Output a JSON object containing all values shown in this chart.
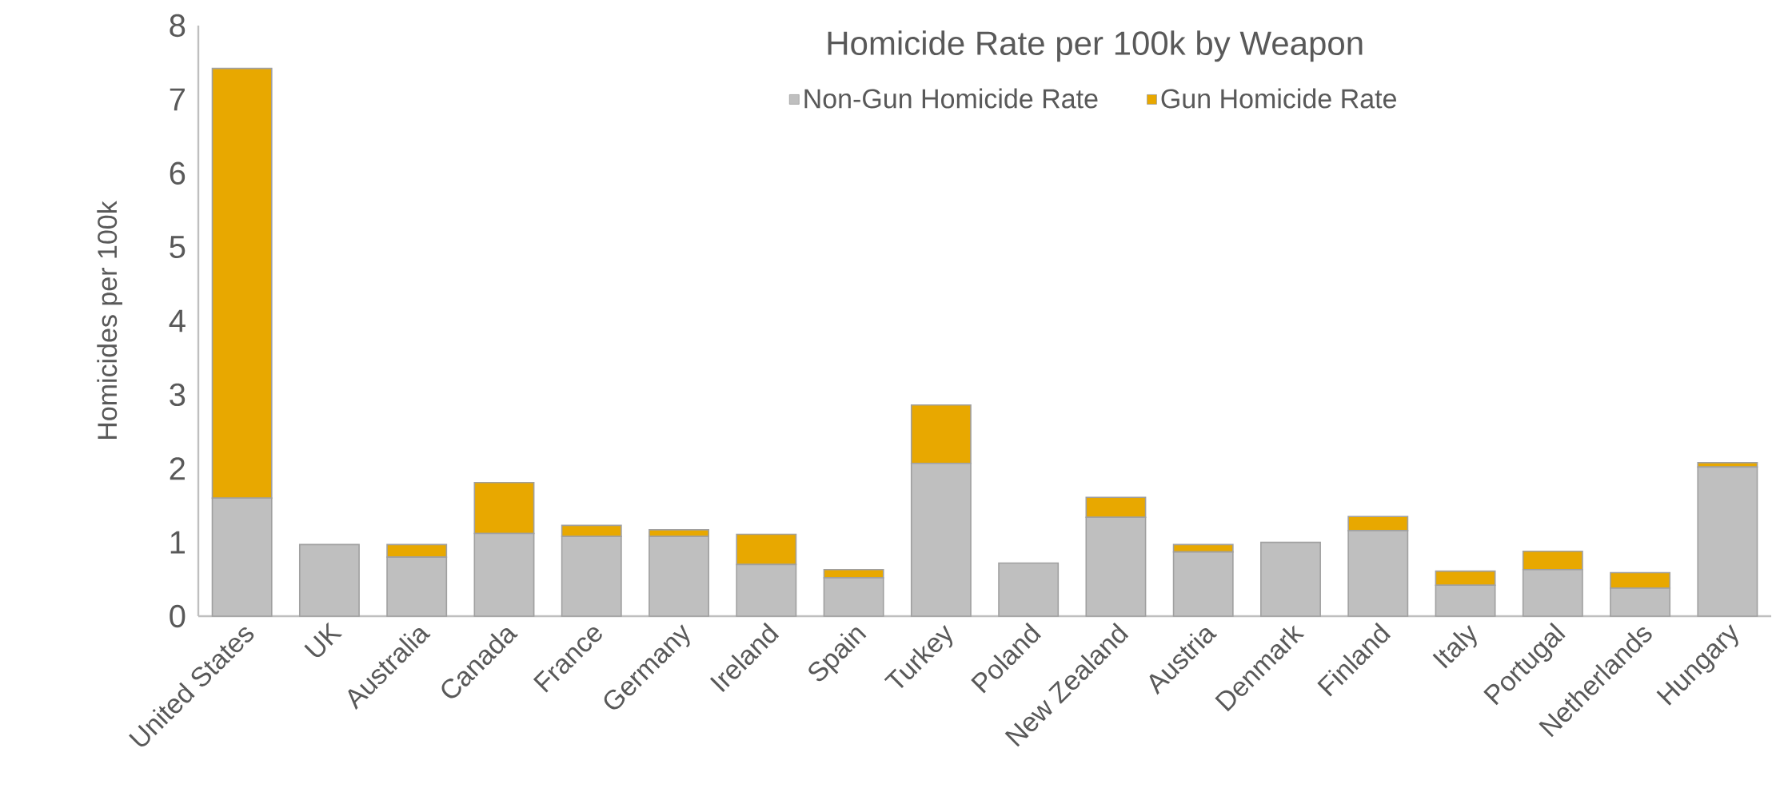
{
  "chart_data": {
    "type": "bar",
    "stacked": true,
    "title": "Homicide Rate per 100k by Weapon",
    "ylabel": "Homicides per 100k",
    "categories": [
      "United States",
      "UK",
      "Australia",
      "Canada",
      "France",
      "Germany",
      "Ireland",
      "Spain",
      "Turkey",
      "Poland",
      "New Zealand",
      "Austria",
      "Denmark",
      "Finland",
      "Italy",
      "Portugal",
      "Netherlands",
      "Hungary"
    ],
    "series": [
      {
        "name": "Non-Gun Homicide Rate",
        "color": "#bfbfbf",
        "values": [
          1.6,
          0.97,
          0.8,
          1.12,
          1.08,
          1.08,
          0.7,
          0.52,
          2.07,
          0.72,
          1.34,
          0.87,
          1.0,
          1.16,
          0.42,
          0.63,
          0.38,
          2.02
        ]
      },
      {
        "name": "Gun Homicide Rate",
        "color": "#e8a800",
        "values": [
          5.82,
          null,
          0.17,
          0.69,
          0.15,
          0.09,
          0.41,
          0.11,
          0.79,
          null,
          0.27,
          0.1,
          null,
          0.19,
          0.19,
          0.25,
          0.21,
          0.06
        ]
      }
    ],
    "ylim": [
      0,
      8
    ],
    "yticks": [
      0,
      1,
      2,
      3,
      4,
      5,
      6,
      7,
      8
    ],
    "grid": false,
    "legend": "top"
  }
}
